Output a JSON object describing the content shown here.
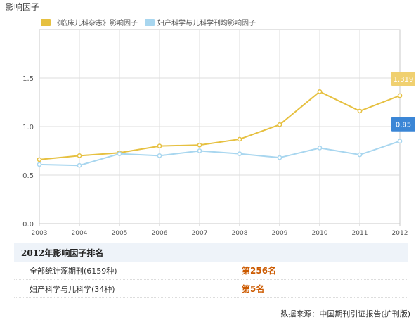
{
  "page_title": "影响因子",
  "chart_data": {
    "type": "line",
    "x": [
      "2003",
      "2004",
      "2005",
      "2006",
      "2007",
      "2008",
      "2009",
      "2010",
      "2011",
      "2012"
    ],
    "ylim": [
      0,
      2.0
    ],
    "yticks": [
      "0.0",
      "0.5",
      "1.0",
      "1.5"
    ],
    "grid": true,
    "legend_position": "top-left",
    "series": [
      {
        "name": "《临床儿科杂志》影响因子",
        "color": "#e6c040",
        "values": [
          0.66,
          0.7,
          0.73,
          0.8,
          0.81,
          0.87,
          1.02,
          1.36,
          1.16,
          1.319
        ],
        "end_label": "1.319"
      },
      {
        "name": "妇产科学与儿科学刊均影响因子",
        "color": "#a8d6ef",
        "values": [
          0.61,
          0.6,
          0.72,
          0.7,
          0.75,
          0.72,
          0.68,
          0.78,
          0.71,
          0.85
        ],
        "end_label": "0.85"
      }
    ]
  },
  "ranking": {
    "title": "2012年影响因子排名",
    "rows": [
      {
        "name": "全部统计源期刊(6159种)",
        "value": "第256名"
      },
      {
        "name": "妇产科学与儿科学(34种)",
        "value": "第5名"
      }
    ]
  },
  "source": "数据来源：中国期刊引证报告(扩刊版)",
  "colors": {
    "callout_1": "#f0d070",
    "callout_2": "#3b86d6",
    "callout_text_1": "#ffffff",
    "callout_text_2": "#ffffff"
  }
}
